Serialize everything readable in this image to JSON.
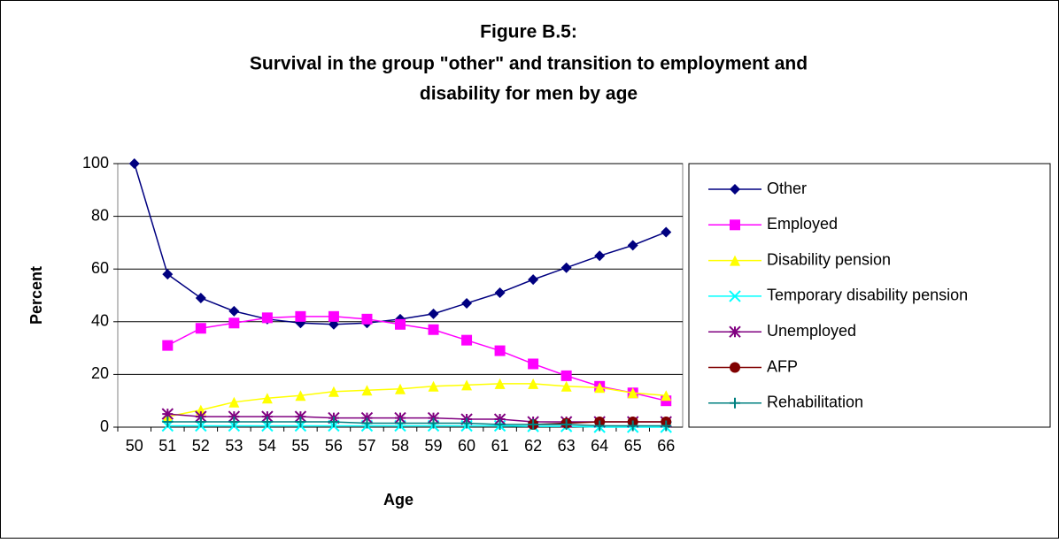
{
  "chart_data": {
    "type": "line",
    "title": "Figure B.5:",
    "subtitle": [
      "Survival in the group \"other\" and transition to employment and",
      "disability for men by age"
    ],
    "x_label": "Age",
    "y_label": "Percent",
    "categories": [
      "50",
      "51",
      "52",
      "53",
      "54",
      "55",
      "56",
      "57",
      "58",
      "59",
      "60",
      "61",
      "62",
      "63",
      "64",
      "65",
      "66"
    ],
    "ylim": [
      0,
      100
    ],
    "yticks": [
      0,
      20,
      40,
      60,
      80,
      100
    ],
    "grid": true,
    "legend": "right",
    "series": [
      {
        "name": "Other",
        "color": "#000080",
        "marker": "diamond",
        "values": [
          100,
          58,
          49,
          44,
          41,
          39.5,
          39,
          39.5,
          41,
          43,
          47,
          51,
          56,
          60.5,
          65,
          69,
          74
        ]
      },
      {
        "name": "Employed",
        "color": "#ff00ff",
        "marker": "square",
        "values": [
          null,
          31,
          37.5,
          39.5,
          41.5,
          42,
          42,
          41,
          39,
          37,
          33,
          29,
          24,
          19.5,
          15.5,
          13,
          10
        ]
      },
      {
        "name": "Disability pension",
        "color": "#ffff00",
        "marker": "triangle",
        "values": [
          null,
          4,
          6.5,
          9.5,
          11,
          12,
          13.5,
          14,
          14.5,
          15.5,
          16,
          16.5,
          16.5,
          15.5,
          15,
          13,
          12
        ]
      },
      {
        "name": "Temporary disability pension",
        "color": "#00ffff",
        "marker": "x",
        "values": [
          null,
          0.5,
          0.5,
          0.5,
          0.5,
          0.5,
          0.5,
          0.5,
          0.5,
          0.5,
          0.5,
          0.5,
          0.3,
          0.3,
          0,
          0,
          0
        ]
      },
      {
        "name": "Unemployed",
        "color": "#800080",
        "marker": "asterisk",
        "values": [
          null,
          5,
          4,
          4,
          4,
          4,
          3.5,
          3.5,
          3.5,
          3.5,
          3,
          3,
          2,
          2,
          2,
          2,
          2
        ]
      },
      {
        "name": "AFP",
        "color": "#800000",
        "marker": "circle",
        "values": [
          null,
          null,
          null,
          null,
          null,
          null,
          null,
          null,
          null,
          null,
          null,
          null,
          1,
          1.5,
          2,
          2,
          2
        ]
      },
      {
        "name": "Rehabilitation",
        "color": "#008080",
        "marker": "plus",
        "values": [
          null,
          2,
          2,
          2,
          2,
          2,
          2,
          1.5,
          1.5,
          1.5,
          1.5,
          1,
          1,
          1,
          0.5,
          0.5,
          0.5
        ]
      }
    ]
  }
}
